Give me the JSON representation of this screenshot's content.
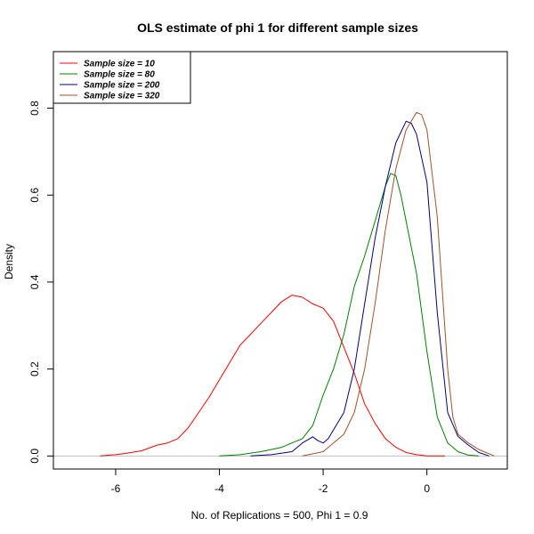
{
  "chart_data": {
    "type": "line",
    "title": "OLS estimate of phi 1 for different sample sizes",
    "xlabel": "No. of Replications = 500, Phi 1 = 0.9",
    "ylabel": "Density",
    "xlim": [
      -7.2,
      1.55
    ],
    "ylim": [
      -0.03,
      0.93
    ],
    "x_ticks": [
      -6,
      -4,
      -2,
      0
    ],
    "x_tick_labels": [
      "-6",
      "-4",
      "-2",
      "0"
    ],
    "y_ticks": [
      0.0,
      0.2,
      0.4,
      0.6,
      0.8
    ],
    "y_tick_labels": [
      "0.0",
      "0.2",
      "0.4",
      "0.6",
      "0.8"
    ],
    "baseline": 0,
    "baseline_color": "#bebebe",
    "legend_position": "top-left",
    "series": [
      {
        "name": "Sample size =  10",
        "color": "#ff0000",
        "x": [
          -6.3,
          -6.0,
          -5.8,
          -5.5,
          -5.2,
          -5.0,
          -4.8,
          -4.6,
          -4.4,
          -4.2,
          -4.0,
          -3.8,
          -3.6,
          -3.4,
          -3.2,
          -3.0,
          -2.8,
          -2.6,
          -2.4,
          -2.2,
          -2.0,
          -1.8,
          -1.6,
          -1.4,
          -1.2,
          -1.0,
          -0.8,
          -0.6,
          -0.4,
          -0.2,
          0.0,
          0.2,
          0.35
        ],
        "y": [
          0.0,
          0.003,
          0.006,
          0.012,
          0.025,
          0.03,
          0.04,
          0.065,
          0.1,
          0.135,
          0.175,
          0.215,
          0.255,
          0.28,
          0.305,
          0.33,
          0.355,
          0.37,
          0.365,
          0.35,
          0.34,
          0.31,
          0.25,
          0.19,
          0.12,
          0.075,
          0.04,
          0.02,
          0.008,
          0.003,
          0.0,
          0.0,
          0.0
        ]
      },
      {
        "name": "Sample size =  80",
        "color": "#008000",
        "x": [
          -4.0,
          -3.6,
          -3.2,
          -2.8,
          -2.6,
          -2.4,
          -2.2,
          -2.0,
          -1.8,
          -1.6,
          -1.4,
          -1.2,
          -1.0,
          -0.8,
          -0.7,
          -0.6,
          -0.5,
          -0.4,
          -0.2,
          0.0,
          0.2,
          0.4,
          0.6,
          0.8,
          1.0
        ],
        "y": [
          0.0,
          0.003,
          0.01,
          0.02,
          0.03,
          0.04,
          0.07,
          0.14,
          0.2,
          0.28,
          0.39,
          0.46,
          0.54,
          0.62,
          0.65,
          0.645,
          0.6,
          0.54,
          0.42,
          0.24,
          0.09,
          0.03,
          0.01,
          0.002,
          0.0
        ]
      },
      {
        "name": "Sample size =  200",
        "color": "#000080",
        "x": [
          -3.4,
          -3.0,
          -2.6,
          -2.4,
          -2.2,
          -2.1,
          -2.0,
          -1.9,
          -1.8,
          -1.6,
          -1.4,
          -1.2,
          -1.0,
          -0.8,
          -0.6,
          -0.4,
          -0.3,
          -0.2,
          0.0,
          0.2,
          0.4,
          0.6,
          0.8,
          1.0,
          1.2
        ],
        "y": [
          0.0,
          0.003,
          0.01,
          0.03,
          0.044,
          0.035,
          0.03,
          0.04,
          0.06,
          0.1,
          0.2,
          0.35,
          0.5,
          0.62,
          0.72,
          0.77,
          0.765,
          0.74,
          0.63,
          0.33,
          0.1,
          0.045,
          0.025,
          0.008,
          0.0
        ]
      },
      {
        "name": "Sample size =  320",
        "color": "#a0522d",
        "x": [
          -2.4,
          -2.0,
          -1.8,
          -1.6,
          -1.4,
          -1.2,
          -1.0,
          -0.8,
          -0.6,
          -0.4,
          -0.2,
          -0.1,
          0.0,
          0.2,
          0.4,
          0.5,
          0.6,
          0.8,
          1.0,
          1.3
        ],
        "y": [
          0.0,
          0.01,
          0.03,
          0.05,
          0.1,
          0.2,
          0.35,
          0.52,
          0.66,
          0.75,
          0.79,
          0.785,
          0.75,
          0.55,
          0.2,
          0.09,
          0.05,
          0.03,
          0.015,
          0.0
        ]
      }
    ]
  }
}
